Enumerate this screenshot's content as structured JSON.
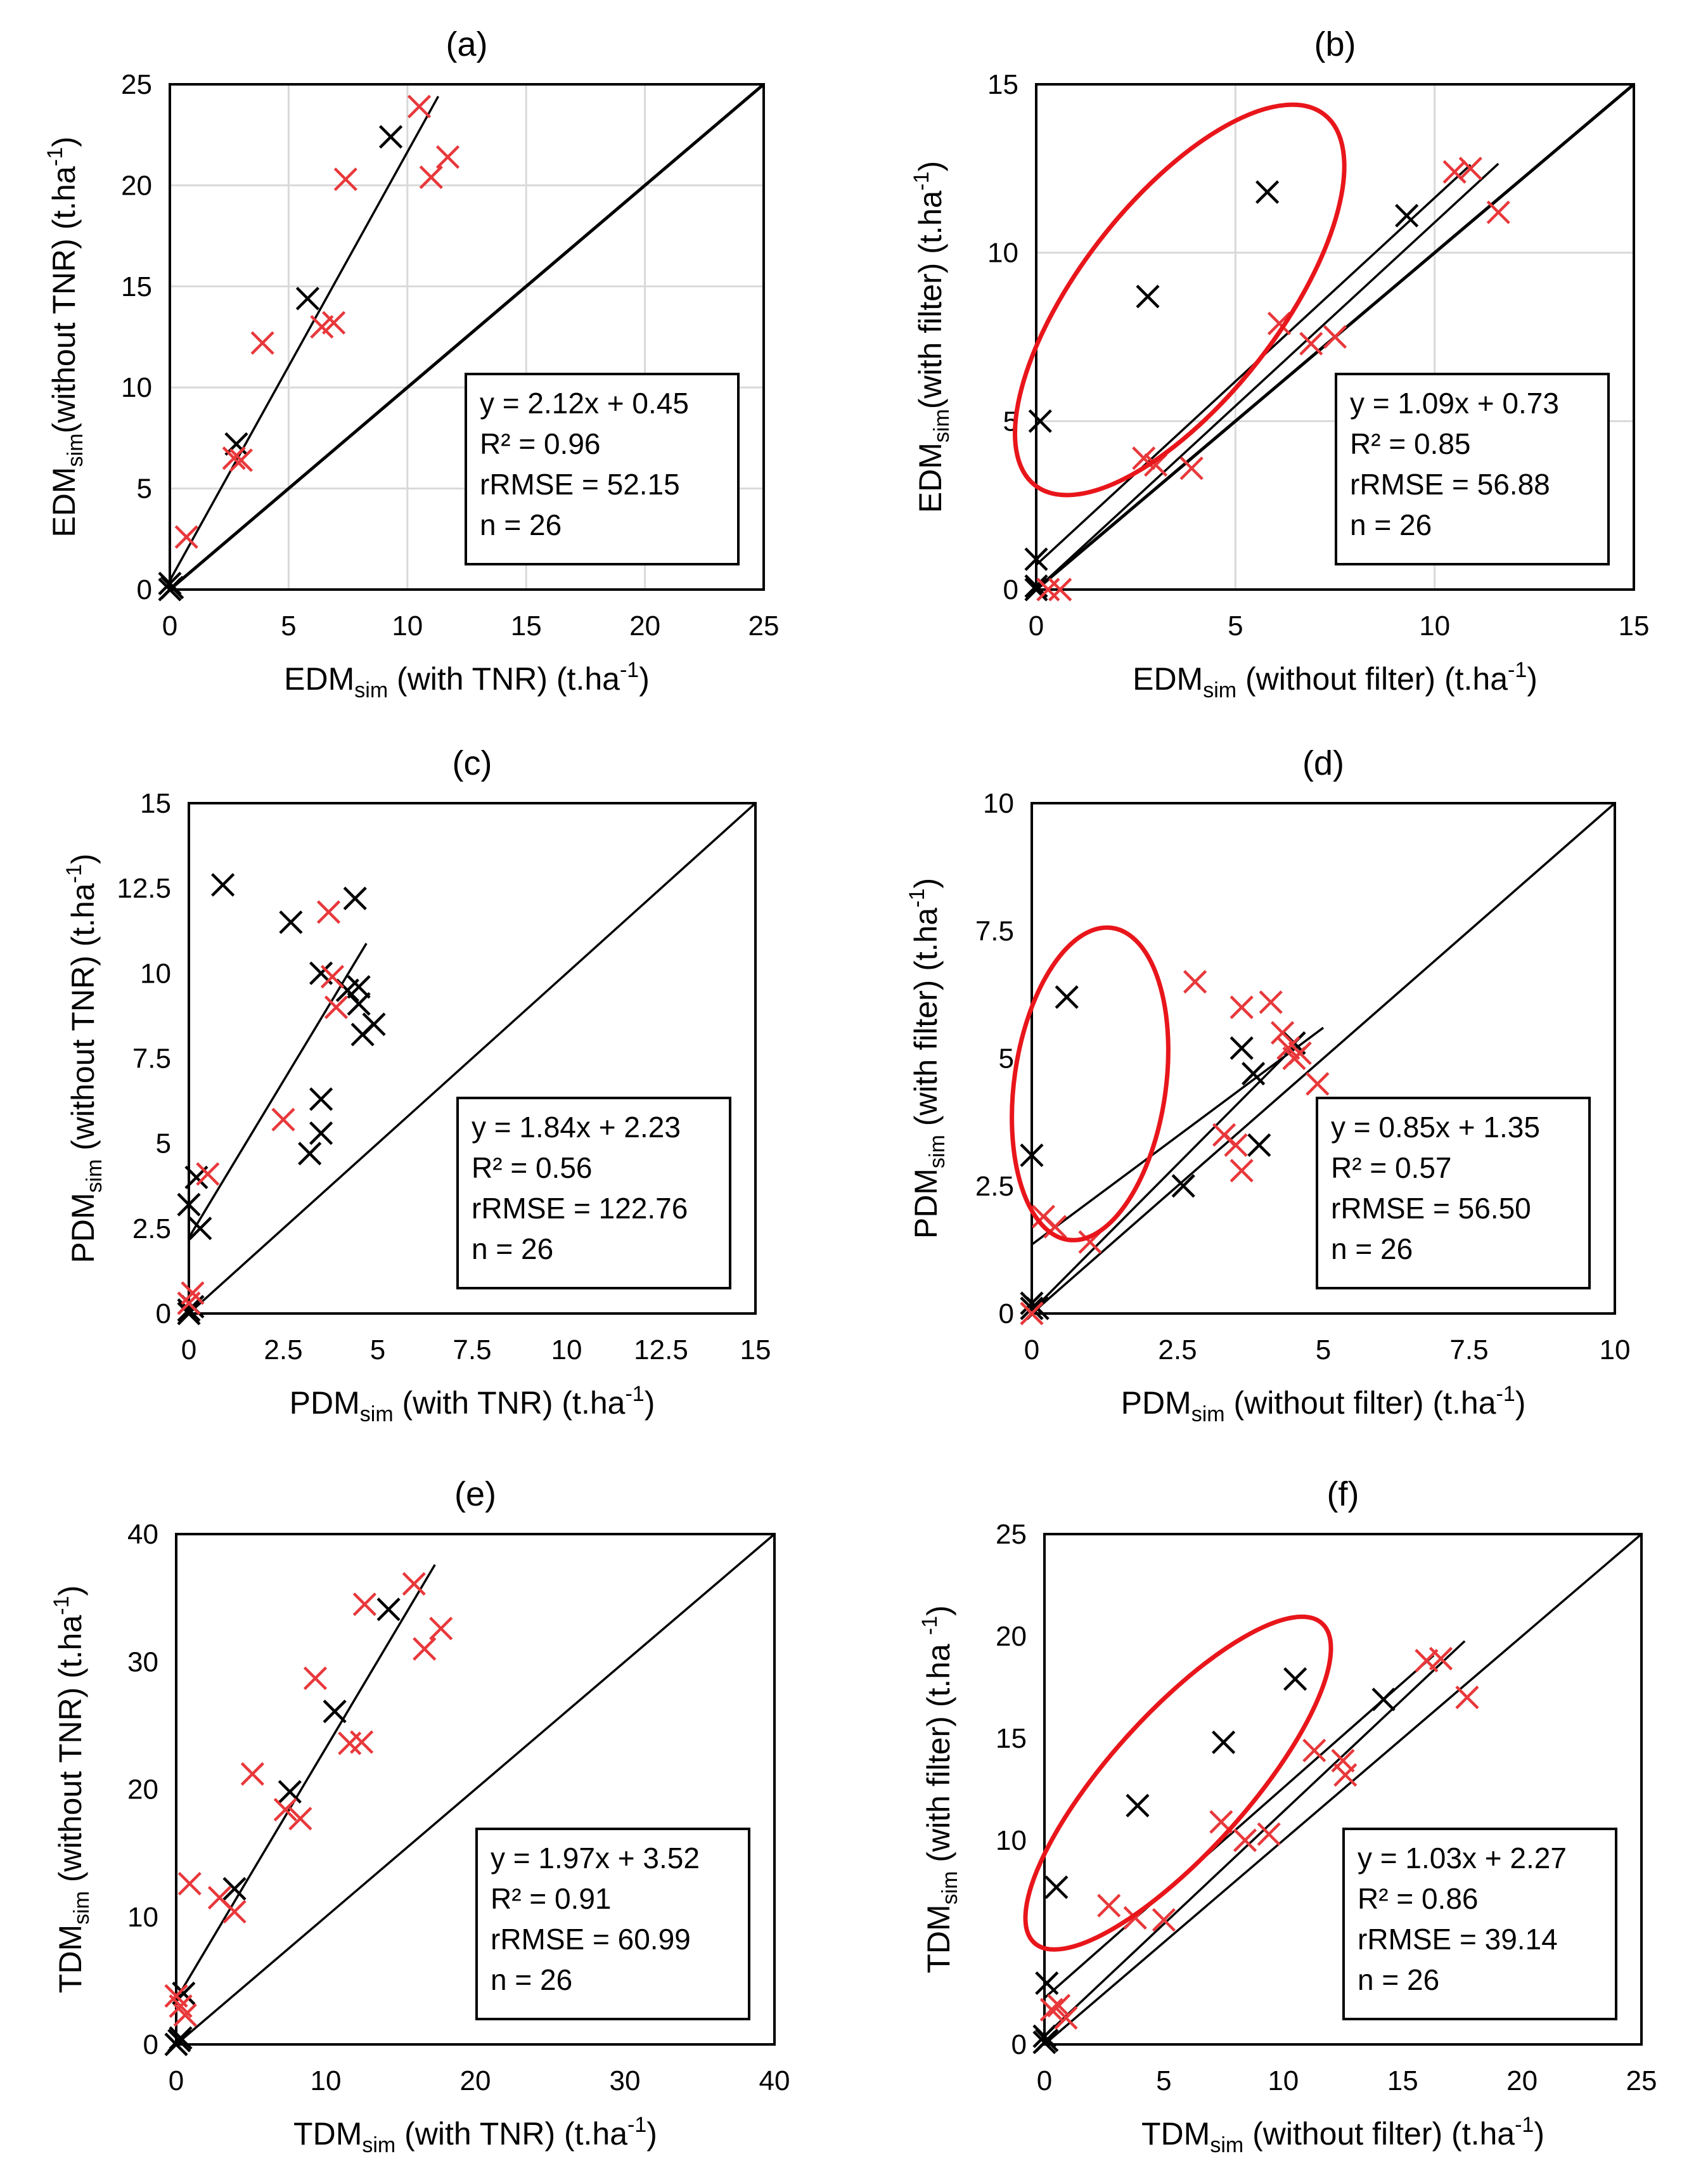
{
  "figure": {
    "colors": {
      "black_marker": "#000000",
      "red_marker": "#e8383b",
      "ellipse": "#e8161b",
      "grid": "#d9d9d9"
    }
  },
  "chart_data": [
    {
      "id": "a",
      "type": "scatter",
      "title": "(a)",
      "xlabel": {
        "main": "EDM",
        "sub": "sim",
        "rest": " (with TNR) (t.ha",
        "sup": "-1",
        "end": ")"
      },
      "ylabel": {
        "main": "EDM",
        "sub": "sim",
        "rest": "(without TNR) (t.ha",
        "sup": "-1",
        "end": ")"
      },
      "xlim": [
        0,
        25
      ],
      "ylim": [
        0,
        25
      ],
      "xticks": [
        0,
        5,
        10,
        15,
        20,
        25
      ],
      "yticks": [
        0,
        5,
        10,
        15,
        20,
        25
      ],
      "xtick_labels": [
        "0",
        "5",
        "10",
        "15",
        "20",
        "25"
      ],
      "ytick_labels": [
        "0",
        "5",
        "10",
        "15",
        "20",
        "25"
      ],
      "grid": true,
      "one_to_one": true,
      "series": [
        {
          "name": "black",
          "color": "#000000",
          "points": [
            [
              0,
              0
            ],
            [
              0,
              0.3
            ],
            [
              0.1,
              0.1
            ],
            [
              2.8,
              7.2
            ],
            [
              5.8,
              14.4
            ],
            [
              9.3,
              22.4
            ]
          ]
        },
        {
          "name": "red",
          "color": "#e8383b",
          "points": [
            [
              0.7,
              2.6
            ],
            [
              2.7,
              6.5
            ],
            [
              3.0,
              6.4
            ],
            [
              3.9,
              12.2
            ],
            [
              6.4,
              13.0
            ],
            [
              6.9,
              13.2
            ],
            [
              7.4,
              20.3
            ],
            [
              10.5,
              23.9
            ],
            [
              11.0,
              20.4
            ],
            [
              11.7,
              21.4
            ]
          ]
        }
      ],
      "fits": [
        {
          "slope": 2.12,
          "intercept": 0.45,
          "x_range": [
            0,
            11.3
          ]
        }
      ],
      "stats": [
        "y = 2.12x + 0.45",
        "R² = 0.96",
        "rRMSE = 52.15",
        "n = 26"
      ],
      "stats_pos": "lower-right",
      "ellipses": []
    },
    {
      "id": "b",
      "type": "scatter",
      "title": "(b)",
      "xlabel": {
        "main": "EDM",
        "sub": "sim",
        "rest": " (without filter) (t.ha",
        "sup": "-1",
        "end": ")"
      },
      "ylabel": {
        "main": "EDM",
        "sub": "sim",
        "rest": "(with filter) (t.ha",
        "sup": "-1",
        "end": ")"
      },
      "xlim": [
        0,
        15
      ],
      "ylim": [
        0,
        15
      ],
      "xticks": [
        0,
        5,
        10,
        15
      ],
      "yticks": [
        0,
        5,
        10,
        15
      ],
      "xtick_labels": [
        "0",
        "5",
        "10",
        "15"
      ],
      "ytick_labels": [
        "0",
        "5",
        "10",
        "15"
      ],
      "grid": true,
      "one_to_one": true,
      "series": [
        {
          "name": "black",
          "color": "#000000",
          "points": [
            [
              0,
              0
            ],
            [
              0,
              0.1
            ],
            [
              0,
              0.9
            ],
            [
              0.1,
              5.0
            ],
            [
              2.8,
              8.7
            ],
            [
              5.8,
              11.8
            ],
            [
              9.3,
              11.1
            ]
          ]
        },
        {
          "name": "red",
          "color": "#e8383b",
          "points": [
            [
              0.3,
              0
            ],
            [
              0.6,
              0
            ],
            [
              2.7,
              3.9
            ],
            [
              3.0,
              3.7
            ],
            [
              3.9,
              3.6
            ],
            [
              6.1,
              7.9
            ],
            [
              6.9,
              7.3
            ],
            [
              7.5,
              7.5
            ],
            [
              10.5,
              12.4
            ],
            [
              10.9,
              12.5
            ],
            [
              11.6,
              11.2
            ]
          ]
        }
      ],
      "fits": [
        {
          "slope": 1.09,
          "intercept": 0.73,
          "x_range": [
            0,
            10.9
          ]
        },
        {
          "slope": 1.09,
          "intercept": 0.0,
          "x_range": [
            0,
            11.6
          ]
        }
      ],
      "stats": [
        "y = 1.09x + 0.73",
        "R² = 0.85",
        "rRMSE = 56.88",
        "n = 26"
      ],
      "stats_pos": "lower-right",
      "ellipses": [
        {
          "cx": 3.6,
          "cy": 8.6,
          "rx": 5.9,
          "ry": 2.5,
          "angle": 52
        }
      ]
    },
    {
      "id": "c",
      "type": "scatter",
      "title": "(c)",
      "xlabel": {
        "main": "PDM",
        "sub": "sim",
        "rest": " (with TNR) (t.ha",
        "sup": "-1",
        "end": ")"
      },
      "ylabel": {
        "main": "PDM",
        "sub": "sim",
        "rest": " (without TNR) (t.ha",
        "sup": "-1",
        "end": ")"
      },
      "xlim": [
        0,
        15
      ],
      "ylim": [
        0,
        15
      ],
      "xticks": [
        0,
        2.5,
        5,
        7.5,
        10,
        12.5,
        15
      ],
      "yticks": [
        0,
        2.5,
        5,
        7.5,
        10,
        12.5,
        15
      ],
      "xtick_labels": [
        "0",
        "2.5",
        "5",
        "7.5",
        "10",
        "12.5",
        "15"
      ],
      "ytick_labels": [
        "0",
        "2.5",
        "5",
        "7.5",
        "10",
        "12.5",
        "15"
      ],
      "grid": false,
      "one_to_one": true,
      "series": [
        {
          "name": "black",
          "color": "#000000",
          "points": [
            [
              0,
              0
            ],
            [
              0,
              0.1
            ],
            [
              0.1,
              0.2
            ],
            [
              0,
              3.2
            ],
            [
              0.2,
              4.0
            ],
            [
              0.3,
              2.5
            ],
            [
              0.9,
              12.6
            ],
            [
              2.7,
              11.5
            ],
            [
              3.5,
              10.0
            ],
            [
              3.5,
              6.3
            ],
            [
              3.5,
              5.3
            ],
            [
              3.2,
              4.7
            ],
            [
              4.4,
              12.2
            ],
            [
              4.2,
              9.5
            ],
            [
              4.5,
              9.1
            ],
            [
              4.5,
              9.6
            ],
            [
              4.6,
              8.2
            ],
            [
              4.9,
              8.5
            ]
          ]
        },
        {
          "name": "red",
          "color": "#e8383b",
          "points": [
            [
              0,
              0.3
            ],
            [
              0.1,
              0.6
            ],
            [
              0.5,
              4.1
            ],
            [
              2.5,
              5.7
            ],
            [
              3.7,
              11.8
            ],
            [
              3.8,
              9.9
            ],
            [
              3.9,
              9.0
            ]
          ]
        }
      ],
      "fits": [
        {
          "slope": 1.84,
          "intercept": 2.23,
          "x_range": [
            0,
            4.7
          ]
        }
      ],
      "stats": [
        "y = 1.84x + 2.23",
        "R² = 0.56",
        "rRMSE = 122.76",
        "n = 26"
      ],
      "stats_pos": "lower-right",
      "ellipses": []
    },
    {
      "id": "d",
      "type": "scatter",
      "title": "(d)",
      "xlabel": {
        "main": "PDM",
        "sub": "sim",
        "rest": " (without filter) (t.ha",
        "sup": "-1",
        "end": ")"
      },
      "ylabel": {
        "main": "PDM",
        "sub": "sim",
        "rest": " (with filter) (t.ha",
        "sup": "-1",
        "end": ")"
      },
      "xlim": [
        0,
        10
      ],
      "ylim": [
        0,
        10
      ],
      "xticks": [
        0,
        2.5,
        5,
        7.5,
        10
      ],
      "yticks": [
        0,
        2.5,
        5,
        7.5,
        10
      ],
      "xtick_labels": [
        "0",
        "2.5",
        "5",
        "7.5",
        "10"
      ],
      "ytick_labels": [
        "0",
        "2.5",
        "5",
        "7.5",
        "10"
      ],
      "grid": false,
      "one_to_one": true,
      "series": [
        {
          "name": "black",
          "color": "#000000",
          "points": [
            [
              0,
              0.1
            ],
            [
              0,
              0.2
            ],
            [
              0.1,
              0.1
            ],
            [
              0,
              3.1
            ],
            [
              0.6,
              6.2
            ],
            [
              2.6,
              2.5
            ],
            [
              3.6,
              5.2
            ],
            [
              3.8,
              4.7
            ],
            [
              3.9,
              3.3
            ],
            [
              4.5,
              5.3
            ]
          ]
        },
        {
          "name": "red",
          "color": "#e8383b",
          "points": [
            [
              0,
              0
            ],
            [
              0.2,
              1.9
            ],
            [
              0.4,
              1.7
            ],
            [
              1.0,
              1.4
            ],
            [
              2.8,
              6.5
            ],
            [
              3.6,
              6.0
            ],
            [
              4.1,
              6.1
            ],
            [
              4.3,
              5.5
            ],
            [
              4.4,
              5.2
            ],
            [
              4.5,
              5.0
            ],
            [
              4.6,
              5.1
            ],
            [
              4.9,
              4.5
            ],
            [
              3.3,
              3.5
            ],
            [
              3.5,
              3.3
            ],
            [
              3.6,
              2.8
            ]
          ]
        }
      ],
      "fits": [
        {
          "slope": 0.85,
          "intercept": 1.35,
          "x_range": [
            0,
            5.0
          ]
        },
        {
          "slope": 1.15,
          "intercept": 0.05,
          "x_range": [
            0,
            4.5
          ]
        }
      ],
      "stats": [
        "y = 0.85x + 1.35",
        "R² = 0.57",
        "rRMSE = 56.50",
        "n = 26"
      ],
      "stats_pos": "lower-right",
      "ellipses": [
        {
          "cx": 1.0,
          "cy": 4.5,
          "rx": 2.7,
          "ry": 1.3,
          "angle": 82
        }
      ]
    },
    {
      "id": "e",
      "type": "scatter",
      "title": "(e)",
      "xlabel": {
        "main": "TDM",
        "sub": "sim",
        "rest": " (with TNR) (t.ha",
        "sup": "-1",
        "end": ")"
      },
      "ylabel": {
        "main": "TDM",
        "sub": "sim",
        "rest": " (without TNR) (t.ha",
        "sup": "-1",
        "end": ")"
      },
      "xlim": [
        0,
        40
      ],
      "ylim": [
        0,
        40
      ],
      "xticks": [
        0,
        10,
        20,
        30,
        40
      ],
      "yticks": [
        0,
        10,
        20,
        30,
        40
      ],
      "xtick_labels": [
        "0",
        "10",
        "20",
        "30",
        "40"
      ],
      "ytick_labels": [
        "0",
        "10",
        "20",
        "30",
        "40"
      ],
      "grid": false,
      "one_to_one": true,
      "series": [
        {
          "name": "black",
          "color": "#000000",
          "points": [
            [
              0,
              0
            ],
            [
              0.2,
              0.3
            ],
            [
              0.3,
              0.5
            ],
            [
              0.5,
              4.0
            ],
            [
              3.9,
              12.2
            ],
            [
              7.6,
              19.8
            ],
            [
              10.6,
              26.1
            ],
            [
              14.2,
              34.1
            ]
          ]
        },
        {
          "name": "red",
          "color": "#e8383b",
          "points": [
            [
              0,
              3.8
            ],
            [
              0.3,
              3.0
            ],
            [
              0.6,
              2.3
            ],
            [
              0.9,
              12.6
            ],
            [
              2.9,
              11.5
            ],
            [
              3.9,
              10.4
            ],
            [
              5.1,
              21.2
            ],
            [
              7.3,
              18.4
            ],
            [
              8.3,
              17.7
            ],
            [
              9.3,
              28.7
            ],
            [
              11.6,
              23.6
            ],
            [
              12.4,
              23.7
            ],
            [
              12.6,
              34.5
            ],
            [
              15.9,
              36.1
            ],
            [
              16.6,
              31.0
            ],
            [
              17.7,
              32.6
            ]
          ]
        }
      ],
      "fits": [
        {
          "slope": 1.97,
          "intercept": 3.52,
          "x_range": [
            0,
            17.3
          ]
        }
      ],
      "stats": [
        "y = 1.97x + 3.52",
        "R² = 0.91",
        "rRMSE = 60.99",
        "n = 26"
      ],
      "stats_pos": "lower-right",
      "ellipses": []
    },
    {
      "id": "f",
      "type": "scatter",
      "title": "(f)",
      "xlabel": {
        "main": "TDM",
        "sub": "sim",
        "rest": " (without filter) (t.ha",
        "sup": "-1",
        "end": ")"
      },
      "ylabel": {
        "main": "TDM",
        "sub": "sim",
        "rest": " (with filter) (t.ha ",
        "sup": "-1",
        "end": ")"
      },
      "xlim": [
        0,
        25
      ],
      "ylim": [
        0,
        25
      ],
      "xticks": [
        0,
        5,
        10,
        15,
        20,
        25
      ],
      "yticks": [
        0,
        5,
        10,
        15,
        20,
        25
      ],
      "xtick_labels": [
        "0",
        "5",
        "10",
        "15",
        "20",
        "25"
      ],
      "ytick_labels": [
        "0",
        "",
        "10",
        "15",
        "20",
        "25"
      ],
      "grid": false,
      "one_to_one": true,
      "series": [
        {
          "name": "black",
          "color": "#000000",
          "points": [
            [
              0,
              0.1
            ],
            [
              0,
              0.4
            ],
            [
              0.1,
              0.2
            ],
            [
              0.1,
              3.0
            ],
            [
              0.5,
              7.7
            ],
            [
              3.9,
              11.7
            ],
            [
              7.5,
              14.8
            ],
            [
              10.5,
              17.9
            ],
            [
              14.2,
              16.9
            ]
          ]
        },
        {
          "name": "red",
          "color": "#e8383b",
          "points": [
            [
              0.3,
              1.7
            ],
            [
              0.6,
              1.9
            ],
            [
              0.9,
              1.3
            ],
            [
              2.7,
              6.8
            ],
            [
              3.8,
              6.2
            ],
            [
              5.0,
              6.1
            ],
            [
              7.4,
              10.9
            ],
            [
              8.4,
              10.0
            ],
            [
              9.4,
              10.3
            ],
            [
              11.3,
              14.4
            ],
            [
              12.5,
              13.9
            ],
            [
              12.6,
              13.2
            ],
            [
              16.0,
              18.8
            ],
            [
              16.6,
              18.9
            ],
            [
              17.7,
              17.0
            ]
          ]
        }
      ],
      "fits": [
        {
          "slope": 1.03,
          "intercept": 2.27,
          "x_range": [
            0,
            16.3
          ]
        },
        {
          "slope": 1.1,
          "intercept": 0.4,
          "x_range": [
            0,
            17.6
          ]
        }
      ],
      "stats": [
        "y = 1.03x + 2.27",
        "R² = 0.86",
        "rRMSE = 39.14",
        "n = 26"
      ],
      "stats_pos": "lower-right",
      "ellipses": [
        {
          "cx": 5.6,
          "cy": 12.8,
          "rx": 9.0,
          "ry": 2.9,
          "angle": 48
        }
      ]
    }
  ]
}
